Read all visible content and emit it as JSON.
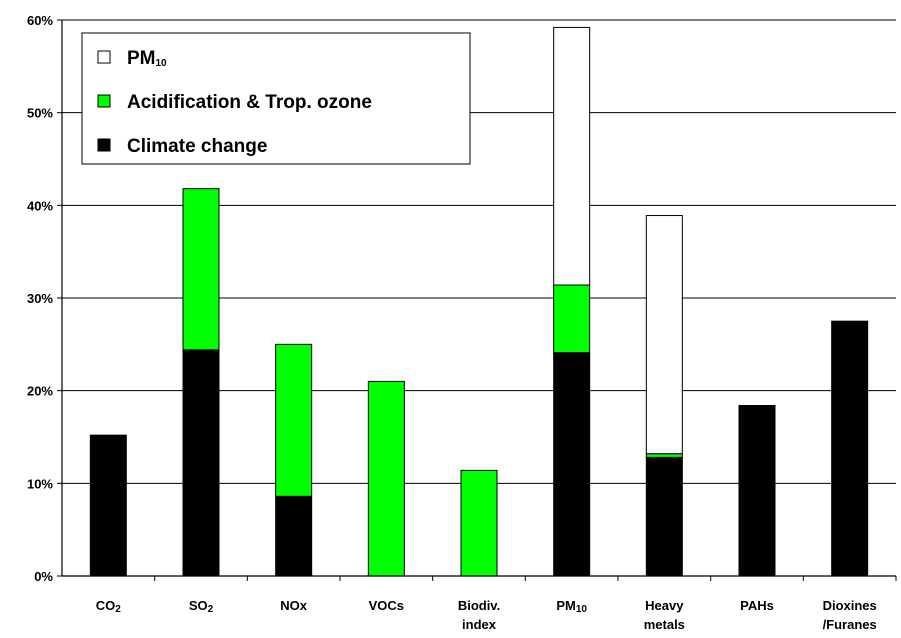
{
  "chart_data": {
    "type": "bar",
    "stacked": true,
    "categories": [
      {
        "parts": [
          {
            "t": "CO"
          },
          {
            "t": "2",
            "sub": true
          }
        ]
      },
      {
        "parts": [
          {
            "t": "SO"
          },
          {
            "t": "2",
            "sub": true
          }
        ]
      },
      {
        "parts": [
          {
            "t": "NOx"
          }
        ]
      },
      {
        "parts": [
          {
            "t": "VOCs"
          }
        ]
      },
      {
        "parts": [
          {
            "t": "Biodiv."
          }
        ],
        "line2": "index"
      },
      {
        "parts": [
          {
            "t": "PM"
          },
          {
            "t": "10",
            "sub": true
          }
        ]
      },
      {
        "parts": [
          {
            "t": "Heavy"
          }
        ],
        "line2": "metals"
      },
      {
        "parts": [
          {
            "t": "PAHs"
          }
        ]
      },
      {
        "parts": [
          {
            "t": "Dioxines"
          }
        ],
        "line2": "/Furanes"
      }
    ],
    "series": [
      {
        "name": "Climate change",
        "color": "#000000",
        "values": [
          15.2,
          24.4,
          8.6,
          0,
          0,
          24.1,
          12.8,
          18.4,
          27.5
        ]
      },
      {
        "name": "Acidification & Trop. ozone",
        "color": "#00ff00",
        "values": [
          0,
          17.4,
          16.4,
          21.0,
          11.4,
          7.3,
          0.4,
          0,
          0
        ]
      },
      {
        "name": "PM10",
        "color": "#ffffff",
        "values": [
          0,
          0,
          0,
          0,
          0,
          27.8,
          25.7,
          0,
          0
        ]
      }
    ],
    "legend": [
      {
        "label": "PM",
        "sub": "10",
        "color": "#ffffff"
      },
      {
        "label": "Acidification & Trop. ozone",
        "color": "#00ff00"
      },
      {
        "label": "Climate change",
        "color": "#000000"
      }
    ],
    "y_ticks": [
      "0%",
      "10%",
      "20%",
      "30%",
      "40%",
      "50%",
      "60%"
    ],
    "ylim": [
      0,
      60
    ],
    "grid": true,
    "legend_position": "top-left"
  }
}
